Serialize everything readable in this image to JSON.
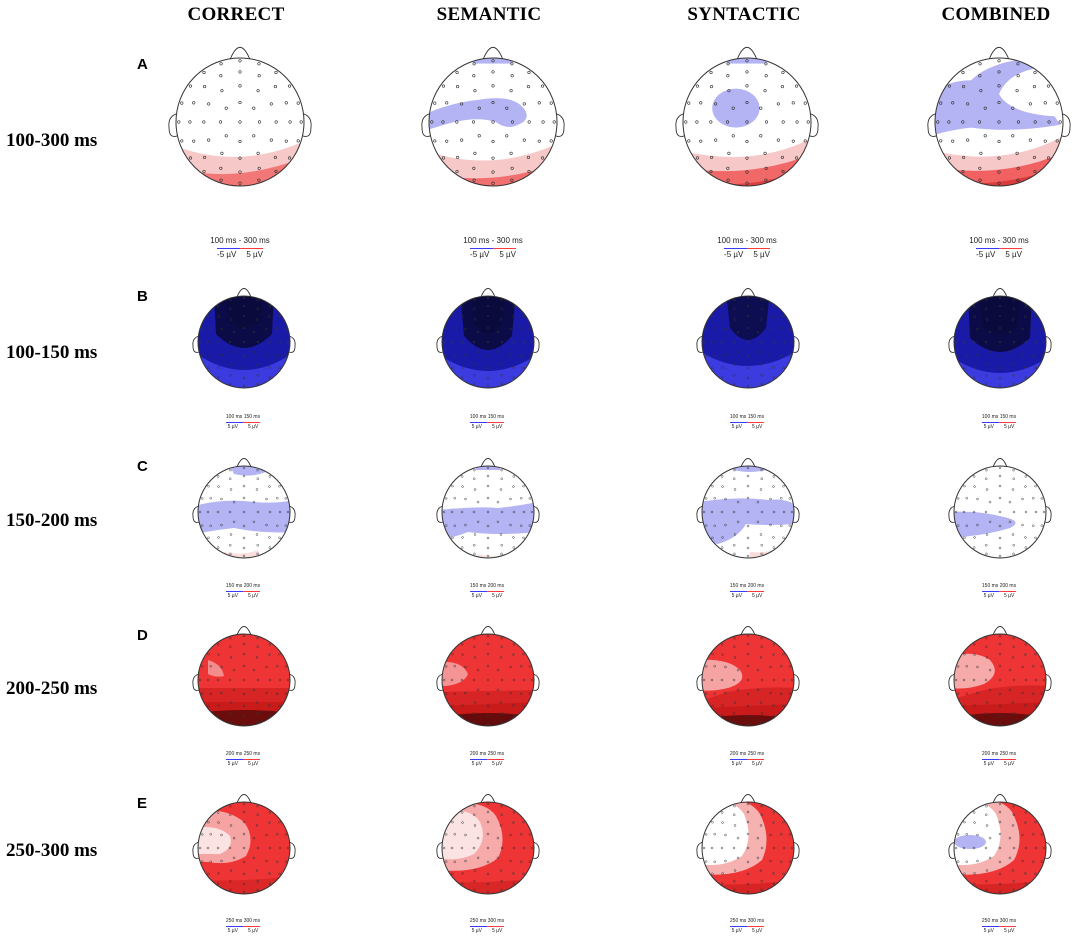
{
  "columns": [
    {
      "key": "correct",
      "label": "CORRECT"
    },
    {
      "key": "semantic",
      "label": "SEMANTIC"
    },
    {
      "key": "syntactic",
      "label": "SYNTACTIC"
    },
    {
      "key": "combined",
      "label": "COMBINED"
    }
  ],
  "rows": [
    {
      "letter": "A",
      "time_label": "100-300 ms",
      "caption": {
        "range": "100 ms - 300 ms",
        "neg": "-5 µV",
        "pos": "5 µV"
      },
      "maps": [
        {
          "name": "correct",
          "pattern": "a-correct"
        },
        {
          "name": "semantic",
          "pattern": "a-semantic"
        },
        {
          "name": "syntactic",
          "pattern": "a-syntactic"
        },
        {
          "name": "combined",
          "pattern": "a-combined"
        }
      ]
    },
    {
      "letter": "B",
      "time_label": "100-150 ms",
      "caption": {
        "range": "100 ms   150 ms",
        "neg": "5 µV",
        "pos": "5 µV"
      },
      "maps": [
        {
          "name": "correct",
          "pattern": "b-correct"
        },
        {
          "name": "semantic",
          "pattern": "b-semantic"
        },
        {
          "name": "syntactic",
          "pattern": "b-syntactic"
        },
        {
          "name": "combined",
          "pattern": "b-combined"
        }
      ]
    },
    {
      "letter": "C",
      "time_label": "150-200 ms",
      "caption": {
        "range": "150 ms   200 ms",
        "neg": "5 µV",
        "pos": "5 µV"
      },
      "maps": [
        {
          "name": "correct",
          "pattern": "c-correct"
        },
        {
          "name": "semantic",
          "pattern": "c-semantic"
        },
        {
          "name": "syntactic",
          "pattern": "c-syntactic"
        },
        {
          "name": "combined",
          "pattern": "c-combined"
        }
      ]
    },
    {
      "letter": "D",
      "time_label": "200-250 ms",
      "caption": {
        "range": "200 ms   250 ms",
        "neg": "5 µV",
        "pos": "5 µV"
      },
      "maps": [
        {
          "name": "correct",
          "pattern": "d-correct"
        },
        {
          "name": "semantic",
          "pattern": "d-semantic"
        },
        {
          "name": "syntactic",
          "pattern": "d-syntactic"
        },
        {
          "name": "combined",
          "pattern": "d-combined"
        }
      ]
    },
    {
      "letter": "E",
      "time_label": "250-300 ms",
      "caption": {
        "range": "250 ms   300 ms",
        "neg": "5 µV",
        "pos": "5 µV"
      },
      "maps": [
        {
          "name": "correct",
          "pattern": "e-correct"
        },
        {
          "name": "semantic",
          "pattern": "e-semantic"
        },
        {
          "name": "syntactic",
          "pattern": "e-syntactic"
        },
        {
          "name": "combined",
          "pattern": "e-combined"
        }
      ]
    }
  ],
  "colors": {
    "blue_light": "#b4b4f4",
    "blue_mid": "#3b3be0",
    "blue_dark": "#1a1aa8",
    "blue_deep": "#0a0a3c",
    "red_light": "#f7c8c8",
    "red_mid": "#ee3434",
    "red_dark": "#c41818",
    "red_deep": "#5a0a0a",
    "outline": "#333333"
  }
}
